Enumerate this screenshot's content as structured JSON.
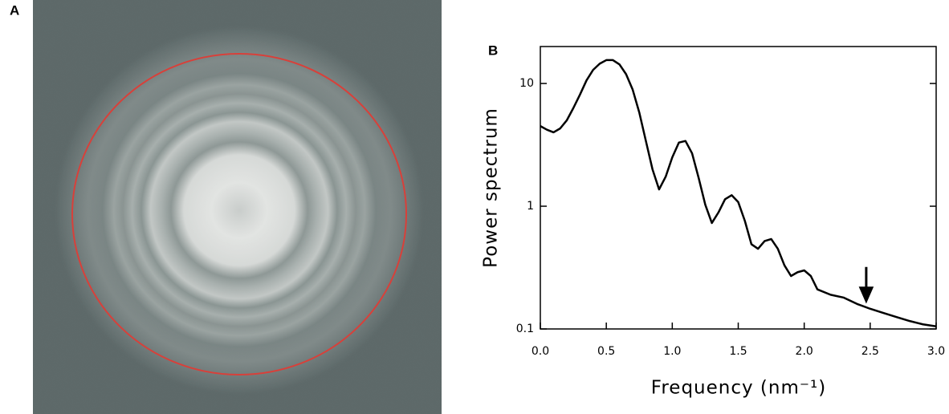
{
  "panel_labels": [
    "A",
    "B"
  ],
  "chart_data": {
    "type": "line",
    "ylabel": "Power spectrum",
    "xlabel": "Frequency (nm⁻¹)",
    "x": [
      0,
      0.05,
      0.1,
      0.15,
      0.2,
      0.25,
      0.3,
      0.35,
      0.4,
      0.45,
      0.5,
      0.55,
      0.6,
      0.65,
      0.7,
      0.75,
      0.8,
      0.85,
      0.9,
      0.95,
      1.0,
      1.05,
      1.1,
      1.15,
      1.2,
      1.25,
      1.3,
      1.35,
      1.4,
      1.45,
      1.5,
      1.55,
      1.6,
      1.65,
      1.7,
      1.75,
      1.8,
      1.85,
      1.9,
      1.95,
      2.0,
      2.05,
      2.1,
      2.2,
      2.3,
      2.4,
      2.5,
      2.6,
      2.7,
      2.8,
      2.9,
      3.0
    ],
    "values": [
      4.5,
      4.2,
      4.0,
      4.3,
      5.0,
      6.3,
      8.1,
      10.6,
      12.9,
      14.5,
      15.5,
      15.5,
      14.3,
      11.9,
      8.9,
      5.8,
      3.4,
      2.0,
      1.37,
      1.74,
      2.5,
      3.3,
      3.4,
      2.7,
      1.7,
      1.03,
      0.73,
      0.89,
      1.14,
      1.23,
      1.08,
      0.76,
      0.49,
      0.45,
      0.52,
      0.54,
      0.45,
      0.33,
      0.27,
      0.29,
      0.3,
      0.27,
      0.21,
      0.19,
      0.18,
      0.16,
      0.146,
      0.135,
      0.125,
      0.116,
      0.109,
      0.105
    ],
    "color": "#000000",
    "xlim": [
      0,
      3
    ],
    "xticks": [
      {
        "value": 0,
        "label": "0.0"
      },
      0.5,
      {
        "value": 1,
        "label": "1.0"
      },
      1.5,
      {
        "value": 2,
        "label": "2.0"
      },
      2.5,
      {
        "value": 3,
        "label": "3.0"
      }
    ],
    "ylim": [
      0.1,
      20
    ],
    "yticks": [
      0.1,
      1,
      10
    ],
    "ylog": true,
    "annotations": [
      {
        "x": 2.47,
        "y": 0.17
      }
    ]
  }
}
